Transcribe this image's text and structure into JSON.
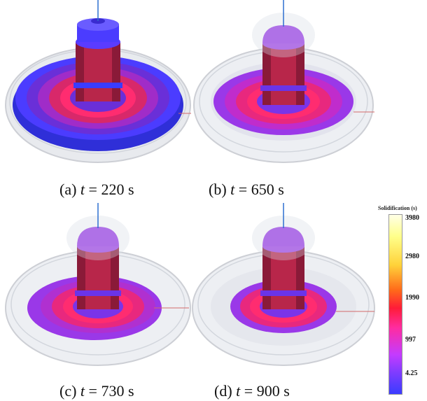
{
  "panels": [
    {
      "id": "a",
      "letter": "(a)",
      "t": "t",
      "eq": " = ",
      "value": "220 s",
      "outer_ring": true,
      "casting_rx": 118,
      "casting_ry": 60,
      "top_color": "#4b3cff"
    },
    {
      "id": "b",
      "letter": "(b)",
      "t": "t",
      "eq": " = ",
      "value": "650 s",
      "outer_ring": false,
      "casting_rx": 100,
      "casting_ry": 48,
      "top_color": "#9a38e8"
    },
    {
      "id": "c",
      "letter": "(c)",
      "t": "t",
      "eq": " = ",
      "value": "730 s",
      "outer_ring": false,
      "casting_rx": 92,
      "casting_ry": 44,
      "top_color": "#9a38e8"
    },
    {
      "id": "d",
      "letter": "(d)",
      "t": "t",
      "eq": " = ",
      "value": "900 s",
      "outer_ring": false,
      "casting_rx": 76,
      "casting_ry": 38,
      "top_color": "#9a38e8"
    }
  ],
  "legend": {
    "title": "Solidification (s)",
    "ticks": [
      "3980",
      "2980",
      "1990",
      "997",
      "4.25"
    ]
  },
  "colors": {
    "blue": "#3a3cff",
    "purple": "#9a38e8",
    "magenta": "#ff2ca0",
    "red": "#d8143a",
    "mold": "#cfd4dc"
  }
}
